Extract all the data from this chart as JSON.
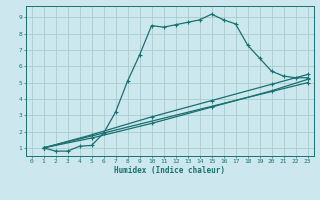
{
  "xlabel": "Humidex (Indice chaleur)",
  "background_color": "#cce8ee",
  "grid_color": "#aacccc",
  "line_color": "#1a7070",
  "xlim": [
    -0.5,
    23.5
  ],
  "ylim": [
    0.5,
    9.7
  ],
  "xticks": [
    0,
    1,
    2,
    3,
    4,
    5,
    6,
    7,
    8,
    9,
    10,
    11,
    12,
    13,
    14,
    15,
    16,
    17,
    18,
    19,
    20,
    21,
    22,
    23
  ],
  "yticks": [
    1,
    2,
    3,
    4,
    5,
    6,
    7,
    8,
    9
  ],
  "curve1_x": [
    1,
    2,
    3,
    4,
    5,
    6,
    7,
    8,
    9,
    10,
    11,
    12,
    13,
    14,
    15,
    16,
    17,
    18,
    19,
    20,
    21,
    22,
    23
  ],
  "curve1_y": [
    1.0,
    0.8,
    0.8,
    1.1,
    1.15,
    1.9,
    3.2,
    5.1,
    6.7,
    8.5,
    8.4,
    8.55,
    8.7,
    8.85,
    9.2,
    8.85,
    8.6,
    7.3,
    6.5,
    5.7,
    5.4,
    5.3,
    5.3
  ],
  "curve2_x": [
    1,
    23
  ],
  "curve2_y": [
    1.0,
    5.0
  ],
  "curve3_x": [
    1,
    5,
    10,
    15,
    20,
    23
  ],
  "curve3_y": [
    1.0,
    1.6,
    2.5,
    3.5,
    4.5,
    5.2
  ],
  "curve4_x": [
    1,
    5,
    10,
    15,
    20,
    23
  ],
  "curve4_y": [
    1.0,
    1.8,
    2.9,
    3.9,
    4.9,
    5.5
  ]
}
